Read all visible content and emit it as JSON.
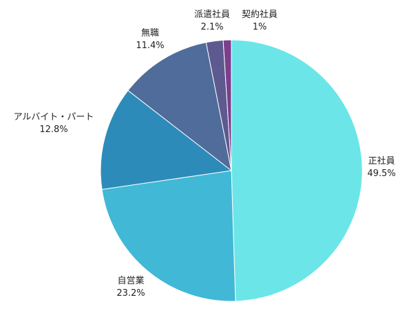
{
  "chart_data": {
    "type": "pie",
    "title": "",
    "legend": "none",
    "start_angle_deg": 0,
    "direction": "clockwise",
    "slices": [
      {
        "label": "正社員",
        "value": 49.5,
        "value_label": "49.5%",
        "color": "#6CE5E8"
      },
      {
        "label": "自営業",
        "value": 23.2,
        "value_label": "23.2%",
        "color": "#41B8D5"
      },
      {
        "label": "アルバイト・パート",
        "value": 12.8,
        "value_label": "12.8%",
        "color": "#2D8BBA"
      },
      {
        "label": "無職",
        "value": 11.4,
        "value_label": "11.4%",
        "color": "#506C9A"
      },
      {
        "label": "派遣社員",
        "value": 2.1,
        "value_label": "2.1%",
        "color": "#5C5A8E"
      },
      {
        "label": "契約社員",
        "value": 1,
        "value_label": "1%",
        "color": "#7B3F8E"
      }
    ]
  }
}
